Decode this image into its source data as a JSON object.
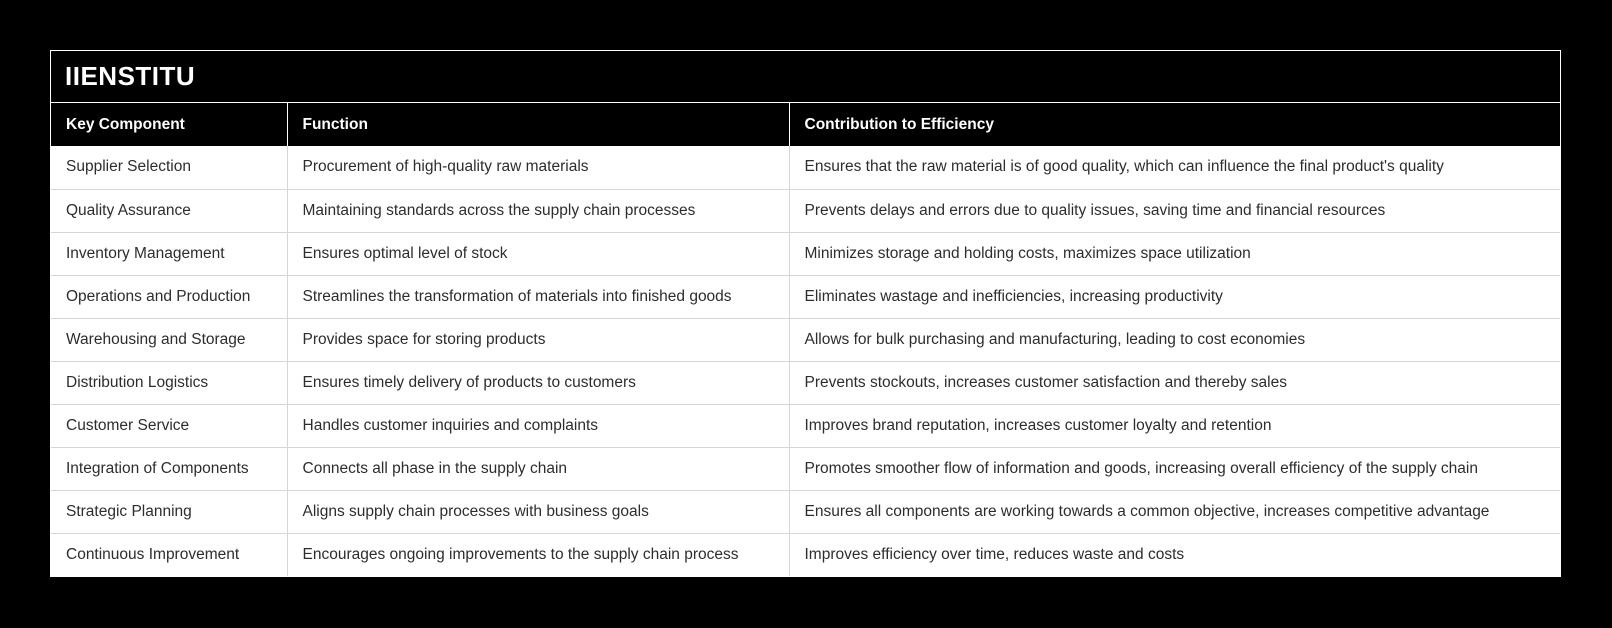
{
  "title_bar": {
    "brand": "IIENSTITU"
  },
  "chart_data": {
    "type": "table",
    "title": "IIENSTITU",
    "columns": [
      "Key Component",
      "Function",
      "Contribution to Efficiency"
    ],
    "rows": [
      [
        "Supplier Selection",
        "Procurement of high-quality raw materials",
        "Ensures that the raw material is of good quality, which can influence the final product's quality"
      ],
      [
        "Quality Assurance",
        "Maintaining standards across the supply chain processes",
        "Prevents delays and errors due to quality issues, saving time and financial resources"
      ],
      [
        "Inventory Management",
        "Ensures optimal level of stock",
        "Minimizes storage and holding costs, maximizes space utilization"
      ],
      [
        "Operations and Production",
        "Streamlines the transformation of materials into finished goods",
        "Eliminates wastage and inefficiencies, increasing productivity"
      ],
      [
        "Warehousing and Storage",
        "Provides space for storing products",
        "Allows for bulk purchasing and manufacturing, leading to cost economies"
      ],
      [
        "Distribution Logistics",
        "Ensures timely delivery of products to customers",
        "Prevents stockouts, increases customer satisfaction and thereby sales"
      ],
      [
        "Customer Service",
        "Handles customer inquiries and complaints",
        "Improves brand reputation, increases customer loyalty and retention"
      ],
      [
        "Integration of Components",
        "Connects all phase in the supply chain",
        "Promotes smoother flow of information and goods, increasing overall efficiency of the supply chain"
      ],
      [
        "Strategic Planning",
        "Aligns supply chain processes with business goals",
        "Ensures all components are working towards a common objective, increases competitive advantage"
      ],
      [
        "Continuous Improvement",
        "Encourages ongoing improvements to the supply chain process",
        "Improves efficiency over time, reduces waste and costs"
      ]
    ],
    "layout": {
      "legend": "none",
      "grid": "on"
    }
  },
  "colors": {
    "page_background": "#000000",
    "header_background": "#000000",
    "header_text": "#ffffff",
    "body_background": "#ffffff",
    "body_text": "#2d2d2d",
    "grid_line": "#d6d6d6",
    "frame_border": "#ffffff"
  }
}
